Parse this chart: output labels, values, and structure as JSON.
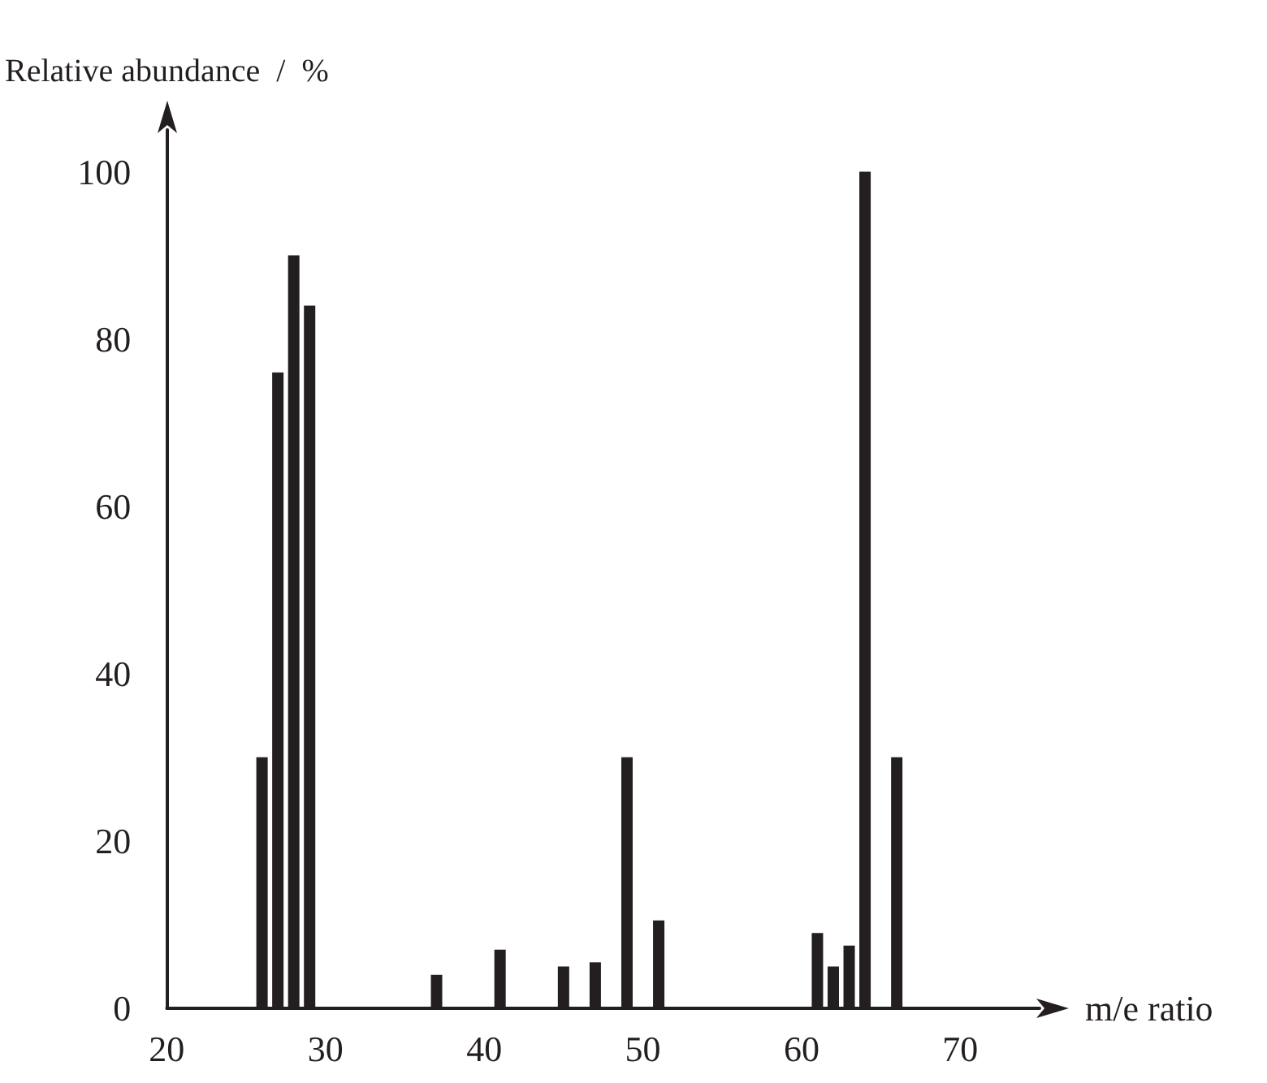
{
  "chart_data": {
    "type": "bar",
    "xlabel": "m/e ratio",
    "ylabel": "Relative abundance  /  %",
    "x": [
      26,
      27,
      28,
      29,
      37,
      41,
      45,
      47,
      49,
      51,
      61,
      62,
      63,
      64,
      66
    ],
    "values": [
      30,
      76,
      90,
      84,
      4,
      7,
      5,
      5.5,
      30,
      10.5,
      9,
      5,
      7.5,
      100,
      30
    ],
    "color": "#231f20",
    "xlim": [
      20,
      75
    ],
    "xticks": [
      20,
      30,
      40,
      50,
      60,
      70
    ],
    "ylim": [
      0,
      105
    ],
    "yticks": [
      0,
      20,
      40,
      60,
      80,
      100
    ],
    "grid": false
  }
}
